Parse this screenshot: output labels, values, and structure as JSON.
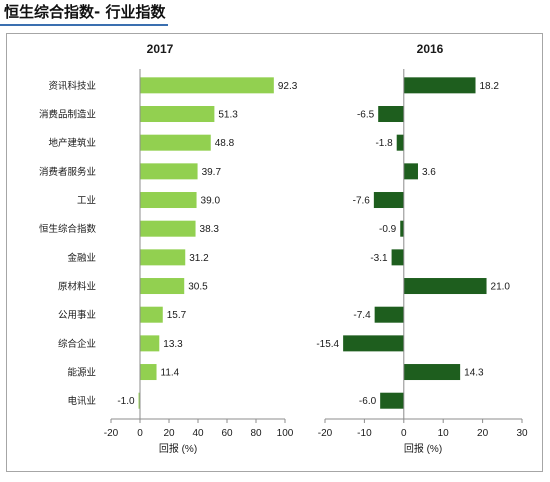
{
  "page": {
    "title": "恒生综合指数- 行业指数"
  },
  "chart_data": [
    {
      "type": "bar",
      "orientation": "horizontal",
      "title": "2017",
      "xlabel": "回报 (%)",
      "ylabel": "",
      "xlim": [
        -20,
        100
      ],
      "xticks": [
        -20,
        0,
        20,
        40,
        60,
        80,
        100
      ],
      "grid": false,
      "bar_color": "#92d050",
      "categories": [
        "资讯科技业",
        "消费品制造业",
        "地产建筑业",
        "消费者服务业",
        "工业",
        "恒生综合指数",
        "金融业",
        "原材料业",
        "公用事业",
        "综合企业",
        "能源业",
        "电讯业"
      ],
      "values": [
        92.3,
        51.3,
        48.8,
        39.7,
        39.0,
        38.3,
        31.2,
        30.5,
        15.7,
        13.3,
        11.4,
        -1.0
      ],
      "value_labels": [
        "92.3",
        "51.3",
        "48.8",
        "39.7",
        "39.0",
        "38.3",
        "31.2",
        "30.5",
        "15.7",
        "13.3",
        "11.4",
        "-1.0"
      ]
    },
    {
      "type": "bar",
      "orientation": "horizontal",
      "title": "2016",
      "xlabel": "回报 (%)",
      "ylabel": "",
      "xlim": [
        -20,
        30
      ],
      "xticks": [
        -20,
        -10,
        0,
        10,
        20,
        30
      ],
      "grid": false,
      "bar_color": "#1e5e1e",
      "categories": [
        "资讯科技业",
        "消费品制造业",
        "地产建筑业",
        "消费者服务业",
        "工业",
        "恒生综合指数",
        "金融业",
        "原材料业",
        "公用事业",
        "综合企业",
        "能源业",
        "电讯业"
      ],
      "values": [
        18.2,
        -6.5,
        -1.8,
        3.6,
        -7.6,
        -0.9,
        -3.1,
        21.0,
        -7.4,
        -15.4,
        14.3,
        -6.0
      ],
      "value_labels": [
        "18.2",
        "-6.5",
        "-1.8",
        "3.6",
        "-7.6",
        "-0.9",
        "-3.1",
        "21.0",
        "-7.4",
        "-15.4",
        "14.3",
        "-6.0"
      ]
    }
  ]
}
